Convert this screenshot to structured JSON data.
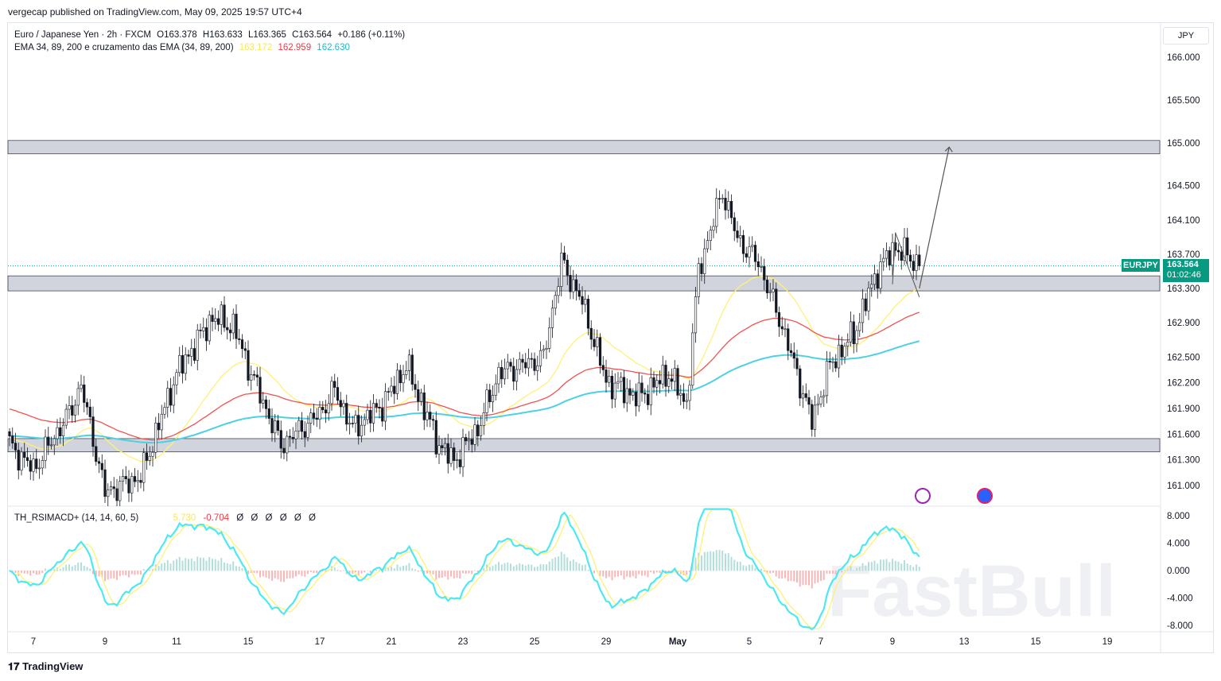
{
  "publisher_line": "vergecap published on TradingView.com, May 09, 2025 19:57 UTC+4",
  "legend": {
    "symbol": "Euro / Japanese Yen · 2h · FXCM",
    "open": "O163.378",
    "high": "H163.633",
    "low": "L163.365",
    "close": "C163.564",
    "change": "+0.186 (+0.11%)",
    "ema_title": "EMA 34, 89, 200 e cruzamento das EMA (34, 89, 200)",
    "ema34": "163.172",
    "ema89": "162.959",
    "ema200": "162.630"
  },
  "oscillator": {
    "title": "TH_RSIMACD+ (14, 14, 60, 5)",
    "v1": "5.730",
    "v2": "-0.704",
    "rest": "Ø Ø Ø Ø Ø Ø"
  },
  "currency": "JPY",
  "price_tag": {
    "symbol": "EURJPY",
    "price": "163.564",
    "countdown": "01:02:46"
  },
  "brand": "TradingView",
  "watermark": "FastBull",
  "colors": {
    "up": "#089981",
    "down": "#f23645",
    "candle": "#131722",
    "ema34": "#fff176",
    "ema89": "#ef5350",
    "ema200": "#4dd0e1",
    "zone": "#d1d4dc"
  },
  "chart_data": {
    "type": "candlestick",
    "title": "EURJPY 2h",
    "ylim": [
      160.85,
      166.3
    ],
    "y_ticks": [
      "166.000",
      "165.500",
      "165.000",
      "164.500",
      "164.100",
      "163.700",
      "163.300",
      "162.900",
      "162.500",
      "162.200",
      "161.900",
      "161.600",
      "161.300",
      "161.000"
    ],
    "y_tick_values": [
      166,
      165.5,
      165,
      164.5,
      164.1,
      163.7,
      163.3,
      162.9,
      162.5,
      162.2,
      161.9,
      161.6,
      161.3,
      161.0
    ],
    "x_ticks": [
      {
        "label": "7",
        "bar": 8
      },
      {
        "label": "9",
        "bar": 32
      },
      {
        "label": "11",
        "bar": 56
      },
      {
        "label": "15",
        "bar": 80
      },
      {
        "label": "17",
        "bar": 104
      },
      {
        "label": "21",
        "bar": 128
      },
      {
        "label": "23",
        "bar": 152
      },
      {
        "label": "25",
        "bar": 176
      },
      {
        "label": "29",
        "bar": 200
      },
      {
        "label": "May",
        "bar": 224
      },
      {
        "label": "5",
        "bar": 248
      },
      {
        "label": "7",
        "bar": 272
      },
      {
        "label": "9",
        "bar": 296
      },
      {
        "label": "13",
        "bar": 320
      },
      {
        "label": "15",
        "bar": 344
      },
      {
        "label": "19",
        "bar": 368
      }
    ],
    "close_keypoints": [
      [
        0,
        161.47
      ],
      [
        8,
        161.19
      ],
      [
        20,
        161.84
      ],
      [
        24,
        162.17
      ],
      [
        32,
        160.92
      ],
      [
        44,
        161.1
      ],
      [
        56,
        162.31
      ],
      [
        68,
        162.96
      ],
      [
        75,
        162.86
      ],
      [
        80,
        162.4
      ],
      [
        91,
        161.47
      ],
      [
        104,
        161.84
      ],
      [
        109,
        162.12
      ],
      [
        115,
        161.66
      ],
      [
        125,
        161.94
      ],
      [
        133,
        162.4
      ],
      [
        144,
        161.47
      ],
      [
        149,
        161.29
      ],
      [
        157,
        161.66
      ],
      [
        164,
        162.31
      ],
      [
        179,
        162.49
      ],
      [
        185,
        163.61
      ],
      [
        192,
        163.14
      ],
      [
        200,
        162.22
      ],
      [
        211,
        162.03
      ],
      [
        221,
        162.31
      ],
      [
        227,
        161.94
      ],
      [
        231,
        163.51
      ],
      [
        239,
        164.44
      ],
      [
        244,
        163.88
      ],
      [
        251,
        163.61
      ],
      [
        259,
        162.86
      ],
      [
        269,
        161.75
      ],
      [
        275,
        162.4
      ],
      [
        283,
        162.77
      ],
      [
        291,
        163.51
      ],
      [
        297,
        163.79
      ],
      [
        305,
        163.564
      ]
    ],
    "zones": [
      [
        164.9,
        165.0
      ],
      [
        163.3,
        163.42
      ],
      [
        161.42,
        161.52
      ]
    ],
    "projection": {
      "from": [
        305,
        163.3
      ],
      "to": [
        315,
        164.95
      ]
    },
    "osc_ylim": [
      -8,
      8
    ],
    "osc_ticks": [
      "8.000",
      "4.000",
      "0.000",
      "-4.000",
      "-8.000"
    ],
    "osc_tick_values": [
      8,
      4,
      0,
      -4,
      -8
    ]
  }
}
